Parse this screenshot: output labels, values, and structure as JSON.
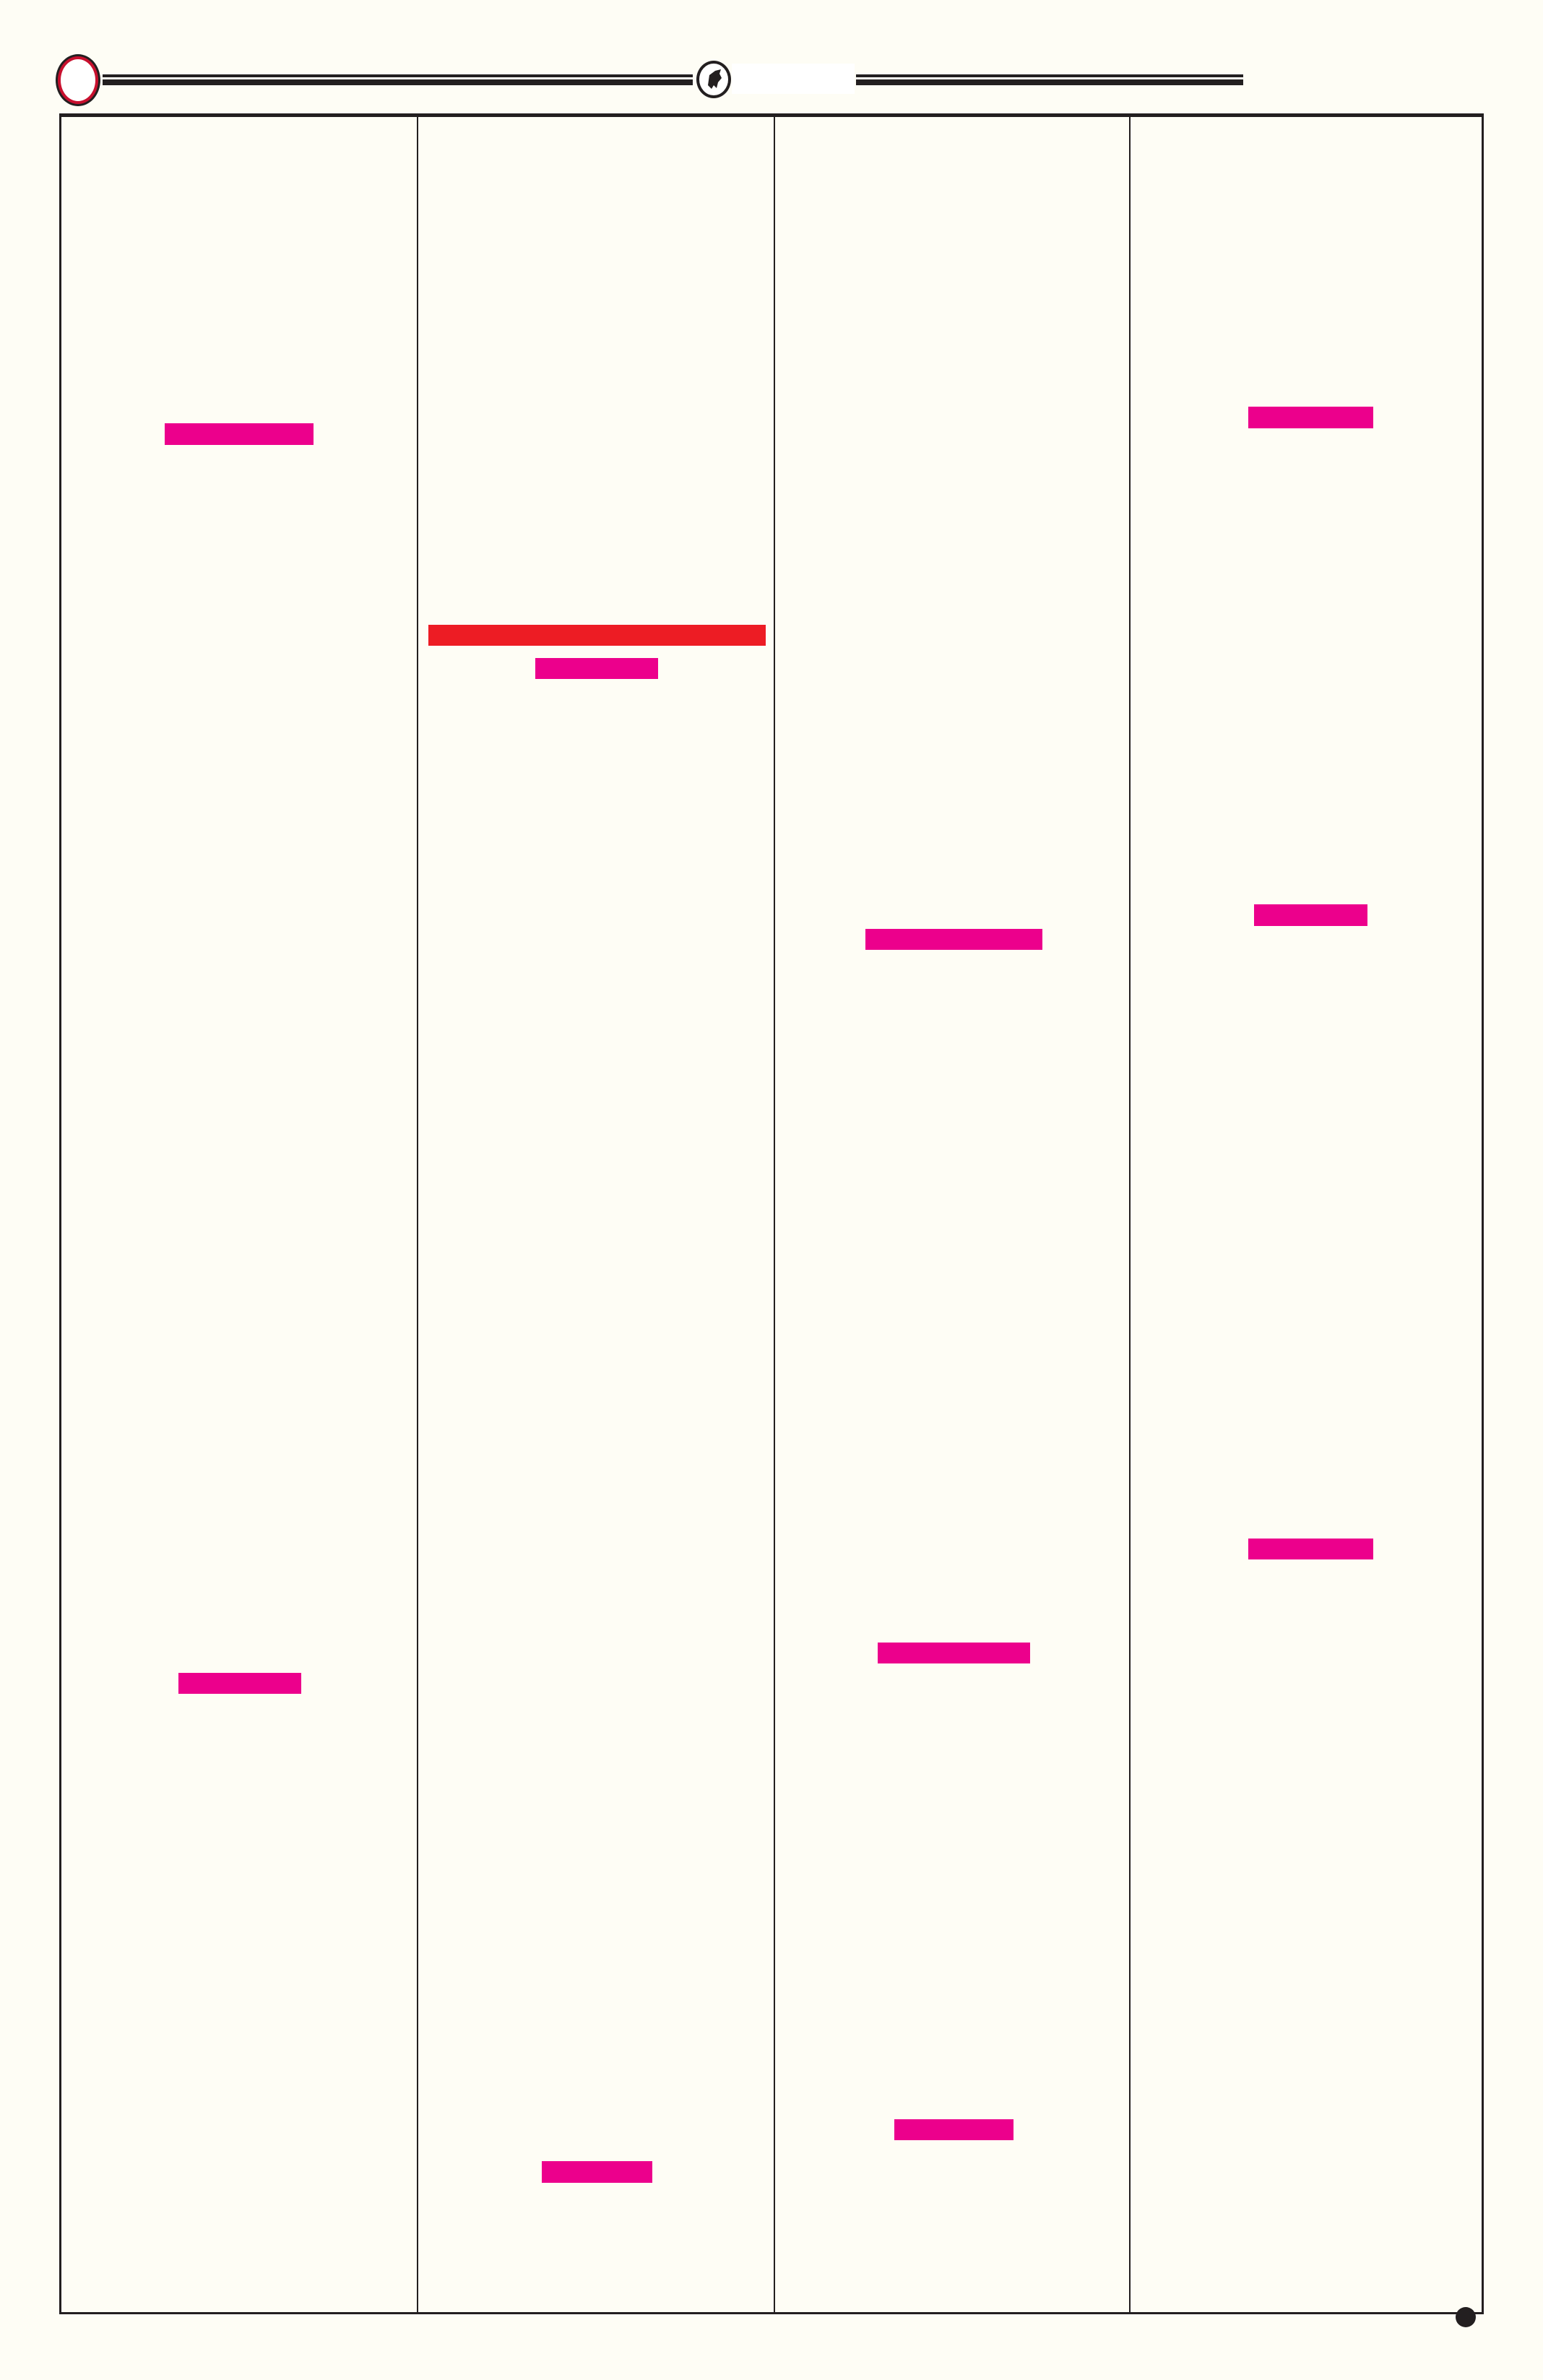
{
  "colors": {
    "background": "#fefdf5",
    "rule": "#231f20",
    "highlight_magenta": "#ec008c",
    "highlight_red": "#ed1c24",
    "ornament_ring": "#c8102e"
  },
  "header": {
    "left_ornament_icon": "ring-ornament-icon",
    "center_emblem_icon": "bull-emblem-icon"
  },
  "footer": {
    "corner_icon": "dot-icon"
  },
  "columns": [
    {
      "blocks": [
        "magenta",
        "magenta"
      ]
    },
    {
      "blocks": [
        "red",
        "magenta",
        "magenta"
      ]
    },
    {
      "blocks": [
        "magenta",
        "magenta",
        "magenta"
      ]
    },
    {
      "blocks": [
        "magenta",
        "magenta",
        "magenta"
      ]
    }
  ]
}
